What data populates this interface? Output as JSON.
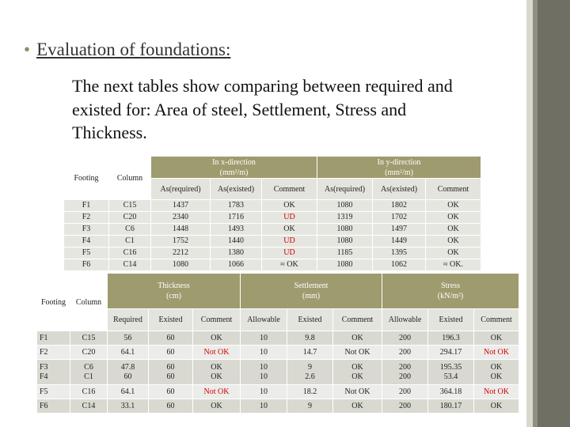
{
  "title": "Evaluation of foundations:",
  "paragraph": [
    "The next tables show comparing between required and",
    "existed for:  Area of steel, Settlement, Stress and",
    "Thickness."
  ],
  "table1": {
    "headers": [
      "Footing",
      "Column"
    ],
    "groups": [
      {
        "title": "In x-direction",
        "unit": "(mm²/m)",
        "columns": [
          "As(required)",
          "As(existed)",
          "Comment"
        ]
      },
      {
        "title": "In y-direction",
        "unit": "(mm²/m)",
        "columns": [
          "As(required)",
          "As(existed)",
          "Comment"
        ]
      }
    ],
    "rows": [
      [
        "F1",
        "C15",
        1437,
        1783,
        "OK",
        1080,
        1802,
        "OK"
      ],
      [
        "F2",
        "C20",
        2340,
        1716,
        "UD",
        1319,
        1702,
        "OK"
      ],
      [
        "F3",
        "C6",
        1448,
        1493,
        "OK",
        1080,
        1497,
        "OK"
      ],
      [
        "F4",
        "C1",
        1752,
        1440,
        "UD",
        1080,
        1449,
        "OK"
      ],
      [
        "F5",
        "C16",
        2212,
        1380,
        "UD",
        1185,
        1395,
        "OK"
      ],
      [
        "F6",
        "C14",
        1080,
        1066,
        "≈ OK",
        1080,
        1062,
        "≈ OK."
      ]
    ]
  },
  "table2": {
    "headers": [
      "Footing",
      "Column"
    ],
    "groups": [
      {
        "title": "Thickness",
        "unit": "(cm)",
        "columns": [
          "Required",
          "Existed",
          "Comment"
        ]
      },
      {
        "title": "Settlement",
        "unit": "(mm)",
        "columns": [
          "Allowable",
          "Existed",
          "Comment"
        ]
      },
      {
        "title": "Stress",
        "unit": "(kN/m²)",
        "columns": [
          "Allowable",
          "Existed",
          "Comment"
        ]
      }
    ],
    "rows": [
      [
        "F1",
        "C15",
        56,
        60,
        "OK",
        10,
        9.8,
        "OK",
        200,
        196.3,
        "OK"
      ],
      [
        "F2",
        "C20",
        64.1,
        60,
        "Not OK",
        10,
        14.7,
        "Not OK",
        200,
        294.17,
        "Not OK"
      ],
      [
        "F3",
        "C6",
        47.8,
        60,
        "OK",
        10,
        9,
        "OK",
        200,
        195.35,
        "OK"
      ],
      [
        "F4",
        "C1",
        60,
        60,
        "OK",
        10,
        2.6,
        "OK",
        200,
        53.4,
        "OK"
      ],
      [
        "F5",
        "C16",
        64.1,
        60,
        "Not OK",
        10,
        18.2,
        "Not OK",
        200,
        364.18,
        "Not OK"
      ],
      [
        "F6",
        "C14",
        33.1,
        60,
        "OK",
        10,
        9,
        "OK",
        200,
        180.17,
        "OK"
      ]
    ]
  }
}
